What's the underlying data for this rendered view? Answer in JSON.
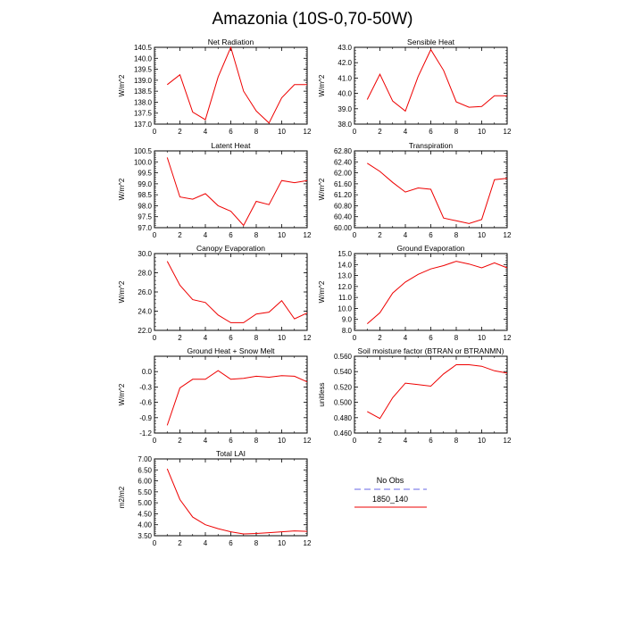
{
  "figure": {
    "title": "Amazonia (10S-0,70-50W)"
  },
  "legend": {
    "entries": [
      {
        "label": "No Obs",
        "color": "#9999ee",
        "style": "dashed"
      },
      {
        "label": "1850_140",
        "color": "#ee0000",
        "style": "solid"
      }
    ]
  },
  "chart_data": [
    {
      "type": "line",
      "title": "Net Radiation",
      "ylabel": "W/m^2",
      "xlim": [
        0,
        12
      ],
      "xticks": [
        "0",
        "2",
        "4",
        "6",
        "8",
        "10",
        "12"
      ],
      "ylim": [
        137.0,
        140.5
      ],
      "yticks": [
        "137.0",
        "137.5",
        "138.0",
        "138.5",
        "139.0",
        "139.5",
        "140.0",
        "140.5"
      ],
      "x": [
        1,
        2,
        3,
        4,
        5,
        6,
        7,
        8,
        9,
        10,
        11,
        12
      ],
      "series": [
        {
          "name": "1850_140",
          "values": [
            138.8,
            139.25,
            137.55,
            137.2,
            139.15,
            140.5,
            138.5,
            137.6,
            137.05,
            138.2,
            138.8,
            138.8
          ]
        }
      ]
    },
    {
      "type": "line",
      "title": "Sensible Heat",
      "ylabel": "W/m^2",
      "xlim": [
        0,
        12
      ],
      "xticks": [
        "0",
        "2",
        "4",
        "6",
        "8",
        "10",
        "12"
      ],
      "ylim": [
        38.0,
        43.0
      ],
      "yticks": [
        "38.0",
        "39.0",
        "40.0",
        "41.0",
        "42.0",
        "43.0"
      ],
      "x": [
        1,
        2,
        3,
        4,
        5,
        6,
        7,
        8,
        9,
        10,
        11,
        12
      ],
      "series": [
        {
          "name": "1850_140",
          "values": [
            39.6,
            41.25,
            39.5,
            38.85,
            41.1,
            42.85,
            41.5,
            39.45,
            39.1,
            39.15,
            39.85,
            39.85
          ]
        }
      ]
    },
    {
      "type": "line",
      "title": "Latent Heat",
      "ylabel": "W/m^2",
      "xlim": [
        0,
        12
      ],
      "xticks": [
        "0",
        "2",
        "4",
        "6",
        "8",
        "10",
        "12"
      ],
      "ylim": [
        97.0,
        100.5
      ],
      "yticks": [
        "97.0",
        "97.5",
        "98.0",
        "98.5",
        "99.0",
        "99.5",
        "100.0",
        "100.5"
      ],
      "x": [
        1,
        2,
        3,
        4,
        5,
        6,
        7,
        8,
        9,
        10,
        11,
        12
      ],
      "series": [
        {
          "name": "1850_140",
          "values": [
            100.2,
            98.4,
            98.3,
            98.55,
            98.0,
            97.75,
            97.1,
            98.2,
            98.05,
            99.15,
            99.05,
            99.15
          ]
        }
      ]
    },
    {
      "type": "line",
      "title": "Transpiration",
      "ylabel": "W/m^2",
      "xlim": [
        0,
        12
      ],
      "xticks": [
        "0",
        "2",
        "4",
        "6",
        "8",
        "10",
        "12"
      ],
      "ylim": [
        60.0,
        62.8
      ],
      "yticks": [
        "60.00",
        "60.40",
        "60.80",
        "61.20",
        "61.60",
        "62.00",
        "62.40",
        "62.80"
      ],
      "x": [
        1,
        2,
        3,
        4,
        5,
        6,
        7,
        8,
        9,
        10,
        11,
        12
      ],
      "series": [
        {
          "name": "1850_140",
          "values": [
            62.35,
            62.05,
            61.65,
            61.3,
            61.45,
            61.4,
            60.35,
            60.25,
            60.15,
            60.3,
            61.75,
            61.8
          ]
        }
      ]
    },
    {
      "type": "line",
      "title": "Canopy Evaporation",
      "ylabel": "W/m^2",
      "xlim": [
        0,
        12
      ],
      "xticks": [
        "0",
        "2",
        "4",
        "6",
        "8",
        "10",
        "12"
      ],
      "ylim": [
        22.0,
        30.0
      ],
      "yticks": [
        "22.0",
        "24.0",
        "26.0",
        "28.0",
        "30.0"
      ],
      "x": [
        1,
        2,
        3,
        4,
        5,
        6,
        7,
        8,
        9,
        10,
        11,
        12
      ],
      "series": [
        {
          "name": "1850_140",
          "values": [
            29.2,
            26.7,
            25.2,
            24.9,
            23.6,
            22.8,
            22.8,
            23.7,
            23.9,
            25.1,
            23.2,
            23.8
          ]
        }
      ]
    },
    {
      "type": "line",
      "title": "Ground Evaporation",
      "ylabel": "W/m^2",
      "xlim": [
        0,
        12
      ],
      "xticks": [
        "0",
        "2",
        "4",
        "6",
        "8",
        "10",
        "12"
      ],
      "ylim": [
        8.0,
        15.0
      ],
      "yticks": [
        "8.0",
        "9.0",
        "10.0",
        "11.0",
        "12.0",
        "13.0",
        "14.0",
        "15.0"
      ],
      "x": [
        1,
        2,
        3,
        4,
        5,
        6,
        7,
        8,
        9,
        10,
        11,
        12
      ],
      "series": [
        {
          "name": "1850_140",
          "values": [
            8.6,
            9.6,
            11.4,
            12.4,
            13.1,
            13.6,
            13.9,
            14.3,
            14.05,
            13.7,
            14.15,
            13.7
          ]
        }
      ]
    },
    {
      "type": "line",
      "title": "Ground Heat + Snow Melt",
      "ylabel": "W/m^2",
      "xlim": [
        0,
        12
      ],
      "xticks": [
        "0",
        "2",
        "4",
        "6",
        "8",
        "10",
        "12"
      ],
      "ylim": [
        -1.2,
        0.3
      ],
      "yticks": [
        "-1.2",
        "-0.9",
        "-0.6",
        "-0.3",
        "0.0"
      ],
      "x": [
        1,
        2,
        3,
        4,
        5,
        6,
        7,
        8,
        9,
        10,
        11,
        12
      ],
      "series": [
        {
          "name": "1850_140",
          "values": [
            -1.05,
            -0.32,
            -0.15,
            -0.15,
            0.02,
            -0.15,
            -0.13,
            -0.09,
            -0.11,
            -0.08,
            -0.09,
            -0.2
          ]
        }
      ]
    },
    {
      "type": "line",
      "title": "Soil moisture factor (BTRAN or BTRANMN)",
      "ylabel": "unitless",
      "xlim": [
        0,
        12
      ],
      "xticks": [
        "0",
        "2",
        "4",
        "6",
        "8",
        "10",
        "12"
      ],
      "ylim": [
        0.46,
        0.56
      ],
      "yticks": [
        "0.460",
        "0.480",
        "0.500",
        "0.520",
        "0.540",
        "0.560"
      ],
      "x": [
        1,
        2,
        3,
        4,
        5,
        6,
        7,
        8,
        9,
        10,
        11,
        12
      ],
      "series": [
        {
          "name": "1850_140",
          "values": [
            0.488,
            0.479,
            0.506,
            0.525,
            0.523,
            0.521,
            0.537,
            0.549,
            0.549,
            0.547,
            0.541,
            0.538
          ]
        }
      ]
    },
    {
      "type": "line",
      "title": "Total LAI",
      "ylabel": "m2/m2",
      "xlim": [
        0,
        12
      ],
      "xticks": [
        "0",
        "2",
        "4",
        "6",
        "8",
        "10",
        "12"
      ],
      "ylim": [
        3.5,
        7.0
      ],
      "yticks": [
        "3.50",
        "4.00",
        "4.50",
        "5.00",
        "5.50",
        "6.00",
        "6.50",
        "7.00"
      ],
      "x": [
        1,
        2,
        3,
        4,
        5,
        6,
        7,
        8,
        9,
        10,
        11,
        12
      ],
      "series": [
        {
          "name": "1850_140",
          "values": [
            6.55,
            5.15,
            4.35,
            4.0,
            3.82,
            3.68,
            3.58,
            3.6,
            3.64,
            3.68,
            3.72,
            3.7
          ]
        }
      ]
    }
  ]
}
